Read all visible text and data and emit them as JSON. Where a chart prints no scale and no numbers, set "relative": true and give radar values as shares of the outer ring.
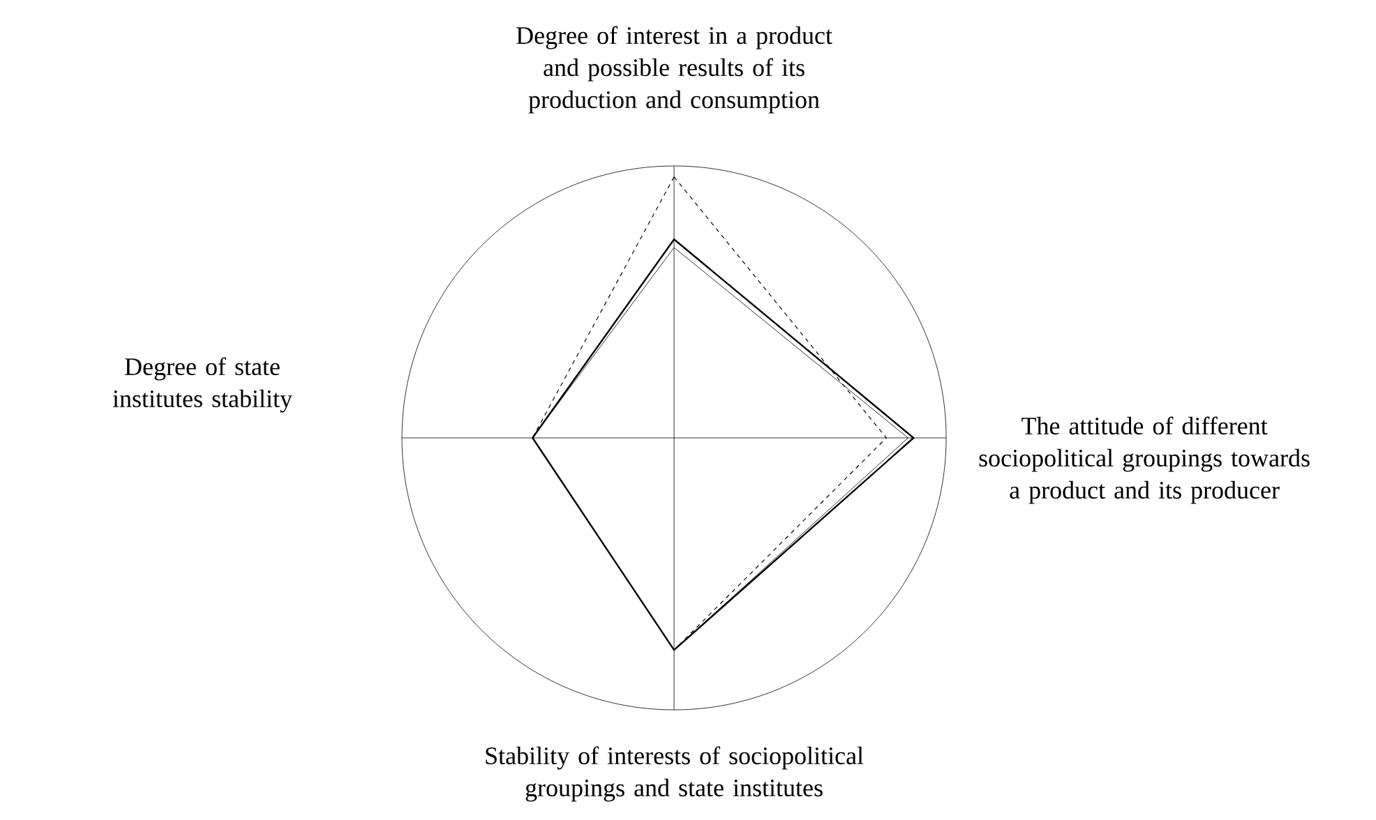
{
  "chart_data": {
    "type": "radar",
    "relative": true,
    "grid": true,
    "marker": "none",
    "categories": [
      "Degree of interest in a product and possible results of its production and consumption",
      "The attitude of different sociopolitical groupings towards a product and its producer",
      "Stability of interests of sociopolitical groupings and state institutes",
      "Degree of state institutes stability"
    ],
    "series": [
      {
        "color": "#000000",
        "line_style": "solid",
        "values": [
          0.73,
          0.88,
          0.78,
          0.52
        ]
      },
      {
        "color": "#000000",
        "line_style": "solid",
        "values": [
          0.7,
          0.86,
          0.78,
          0.52
        ]
      },
      {
        "color": "#000000",
        "line_style": "dashed",
        "values": [
          0.96,
          0.78,
          0.78,
          0.52
        ]
      }
    ]
  }
}
